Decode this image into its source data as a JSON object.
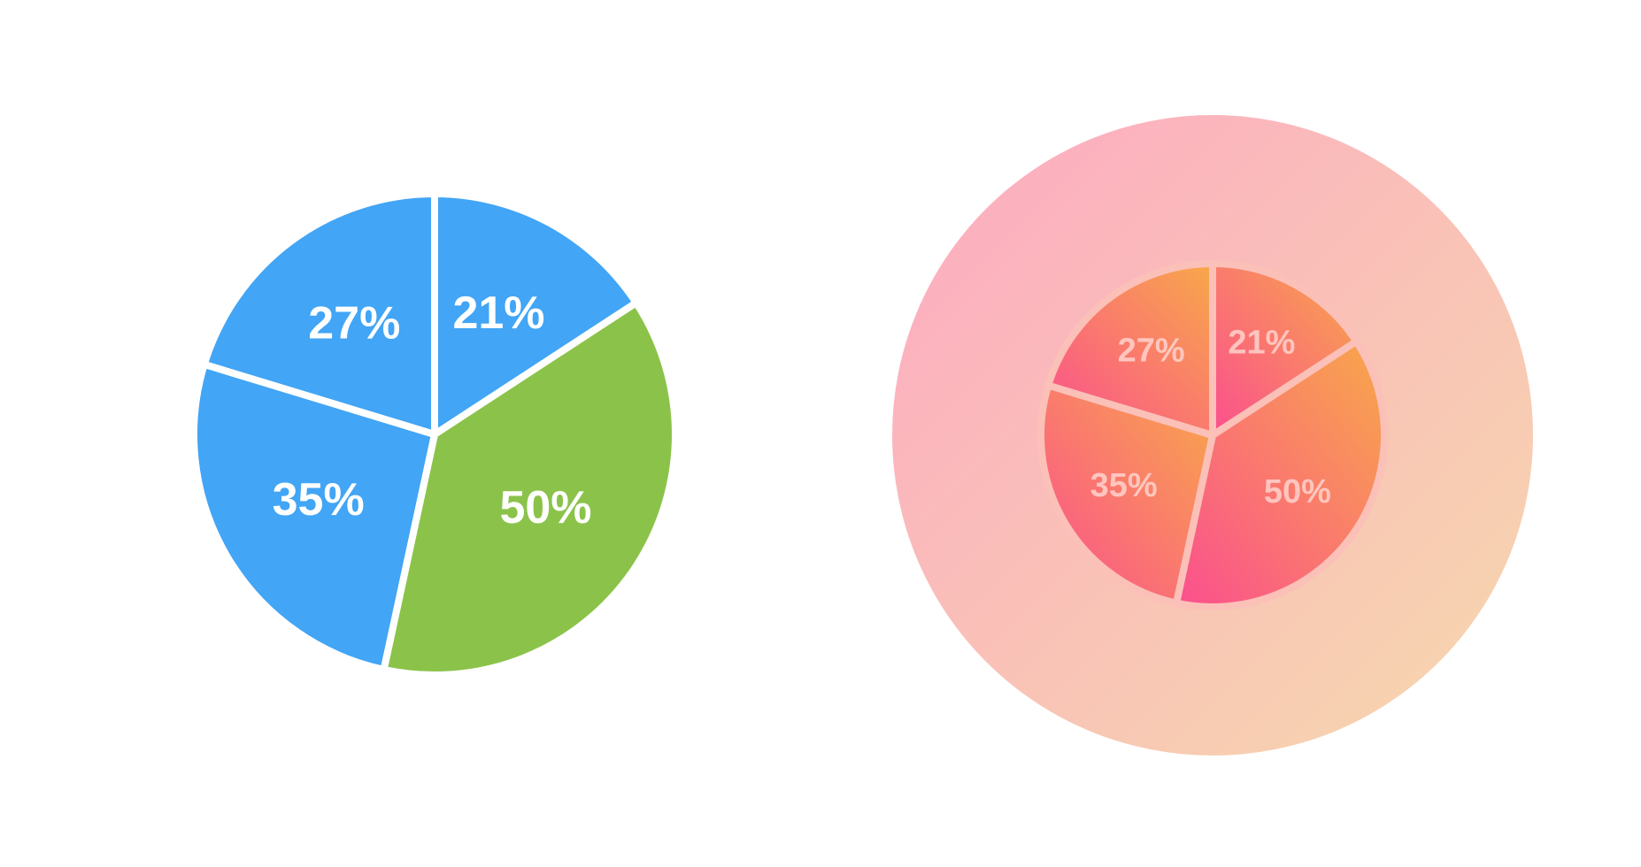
{
  "chart_data": [
    {
      "type": "pie",
      "values": [
        21,
        50,
        35,
        27
      ],
      "value_labels": [
        "21%",
        "50%",
        "35%",
        "27%"
      ],
      "colors": [
        "#42a5f5",
        "#8bc34a",
        "#42a5f5",
        "#42a5f5"
      ]
    },
    {
      "type": "pie",
      "values": [
        21,
        50,
        35,
        27
      ],
      "value_labels": [
        "21%",
        "50%",
        "35%",
        "27%"
      ],
      "gradient": [
        "#fb4f8e",
        "#f8a84a"
      ],
      "background": [
        "#fdaac2",
        "#f6d8ad"
      ]
    }
  ]
}
